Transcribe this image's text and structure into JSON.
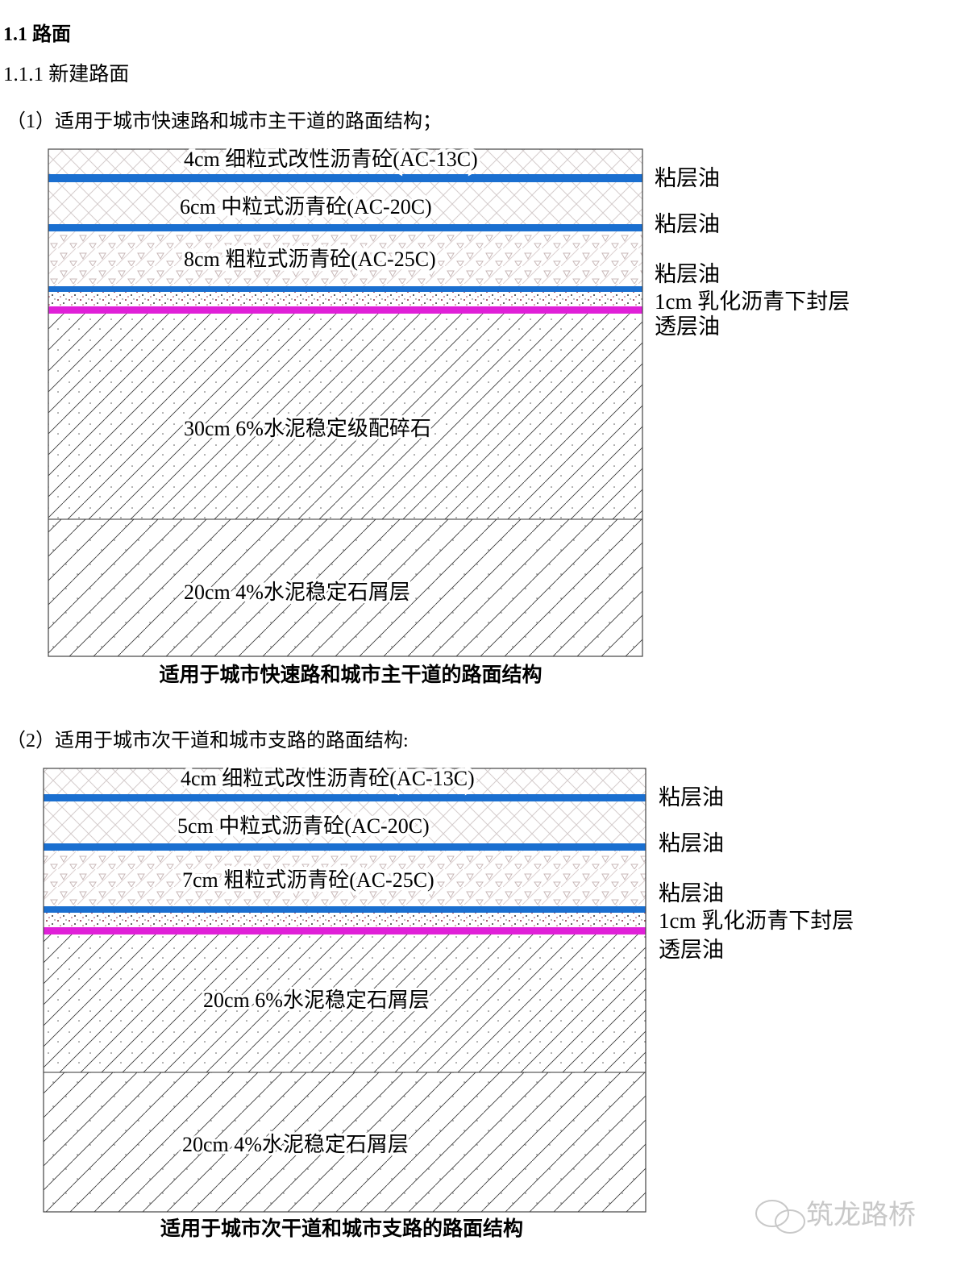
{
  "heading": "1.1 路面",
  "subheading": "1.1.1 新建路面",
  "section1": {
    "intro": "（1）适用于城市快速路和城市主干道的路面结构；",
    "layers": [
      "4cm 细粒式改性沥青砼(AC-13C)",
      "6cm 中粒式沥青砼(AC-20C)",
      "8cm 粗粒式沥青砼(AC-25C)",
      "30cm 6%水泥稳定级配碎石",
      "20cm 4%水泥稳定石屑层"
    ],
    "side_labels": [
      "粘层油",
      "粘层油",
      "粘层油",
      "1cm 乳化沥青下封层",
      "透层油"
    ],
    "caption": "适用于城市快速路和城市主干道的路面结构"
  },
  "section2": {
    "intro": "（2）适用于城市次干道和城市支路的路面结构:",
    "layers": [
      "4cm 细粒式改性沥青砼(AC-13C)",
      "5cm 中粒式沥青砼(AC-20C)",
      "7cm 粗粒式沥青砼(AC-25C)",
      "20cm 6%水泥稳定石屑层",
      "20cm 4%水泥稳定石屑层"
    ],
    "side_labels": [
      "粘层油",
      "粘层油",
      "粘层油",
      "1cm 乳化沥青下封层",
      "透层油"
    ],
    "caption": "适用于城市次干道和城市支路的路面结构"
  },
  "watermark": "筑龙路桥",
  "colors": {
    "tack_coat": "#1a6fd0",
    "prime_coat": "#e020d8",
    "seal_dots": "#8a2a40"
  }
}
